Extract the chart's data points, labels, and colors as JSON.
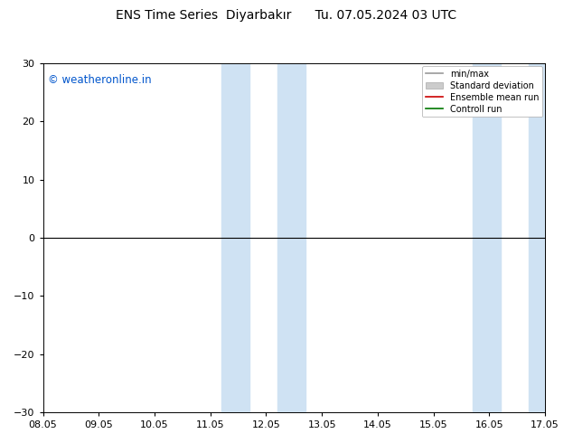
{
  "title": "ENS Time Series  Diyarbakır      Tu. 07.05.2024 03 UTC",
  "ylim": [
    -30,
    30
  ],
  "yticks": [
    -30,
    -20,
    -10,
    0,
    10,
    20,
    30
  ],
  "xtick_labels": [
    "08.05",
    "09.05",
    "10.05",
    "11.05",
    "12.05",
    "13.05",
    "14.05",
    "15.05",
    "16.05",
    "17.05"
  ],
  "shaded_blocks": [
    {
      "xmin": 3.2,
      "xmax": 3.7,
      "color": "#cfe2f3"
    },
    {
      "xmin": 4.2,
      "xmax": 4.7,
      "color": "#cfe2f3"
    },
    {
      "xmin": 7.7,
      "xmax": 8.2,
      "color": "#cfe2f3"
    },
    {
      "xmin": 8.7,
      "xmax": 9.0,
      "color": "#cfe2f3"
    }
  ],
  "watermark": "© weatheronline.in",
  "watermark_color": "#0055cc",
  "legend_items": [
    {
      "label": "min/max",
      "color": "#999999",
      "lw": 1.2,
      "type": "line"
    },
    {
      "label": "Standard deviation",
      "color": "#cccccc",
      "type": "patch"
    },
    {
      "label": "Ensemble mean run",
      "color": "#cc0000",
      "lw": 1.2,
      "type": "line"
    },
    {
      "label": "Controll run",
      "color": "#007700",
      "lw": 1.2,
      "type": "line"
    }
  ],
  "hline_color": "#000000",
  "background_color": "#ffffff",
  "title_fontsize": 10,
  "tick_fontsize": 8,
  "watermark_fontsize": 8.5
}
